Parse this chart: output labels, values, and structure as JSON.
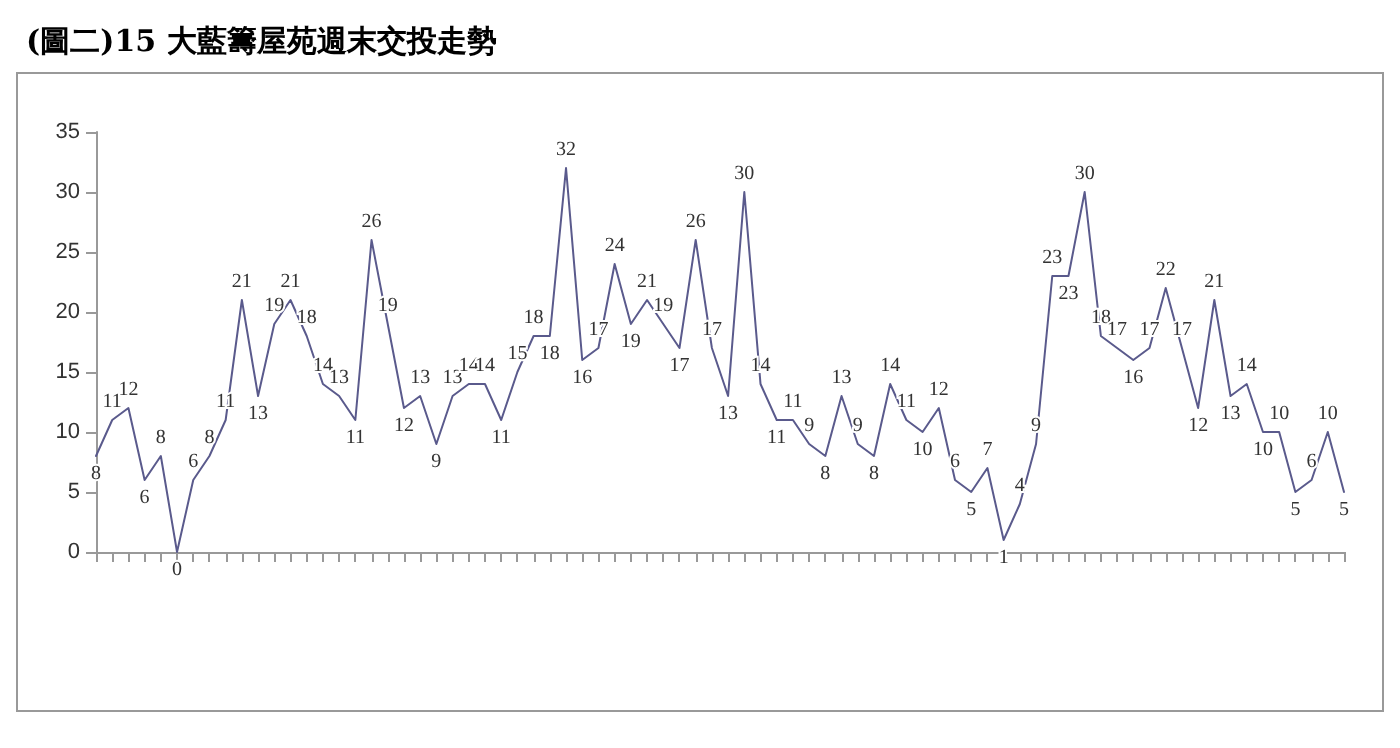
{
  "chart_data": {
    "type": "line",
    "title": "(圖二)15 大藍籌屋苑週末交投走勢",
    "categories": [
      null,
      null,
      null,
      null,
      null,
      null,
      null,
      null,
      null,
      null,
      null,
      null,
      null,
      null,
      null,
      null,
      null,
      null,
      null,
      null,
      null,
      null,
      null,
      null,
      null,
      null,
      null,
      null,
      null,
      null,
      null,
      null,
      null,
      null,
      null,
      null,
      null,
      null,
      null,
      null,
      null,
      null,
      null,
      null,
      null,
      null,
      null,
      null,
      null,
      null,
      null,
      null,
      null,
      null,
      null,
      null,
      null,
      null,
      null,
      null,
      null,
      null,
      null,
      null,
      null,
      null,
      null,
      null,
      null,
      null,
      null,
      null,
      null,
      null,
      null,
      null,
      null,
      null
    ],
    "values": [
      8,
      11,
      12,
      6,
      8,
      0,
      6,
      8,
      11,
      21,
      13,
      19,
      21,
      18,
      14,
      13,
      11,
      26,
      19,
      12,
      13,
      9,
      13,
      14,
      14,
      11,
      15,
      18,
      18,
      32,
      16,
      17,
      24,
      19,
      21,
      19,
      17,
      26,
      17,
      13,
      30,
      14,
      11,
      11,
      9,
      8,
      13,
      9,
      8,
      14,
      11,
      10,
      12,
      6,
      5,
      7,
      1,
      4,
      9,
      23,
      23,
      30,
      18,
      17,
      16,
      17,
      22,
      17,
      12,
      21,
      13,
      14,
      10,
      10,
      5,
      6,
      10,
      5
    ],
    "color": "#5a5a8c",
    "ylim": [
      0,
      35
    ],
    "yticks": [
      0,
      5,
      10,
      15,
      20,
      25,
      30,
      35
    ],
    "grid": false,
    "marker": "none",
    "line_style": "solid",
    "data_labels": true
  }
}
